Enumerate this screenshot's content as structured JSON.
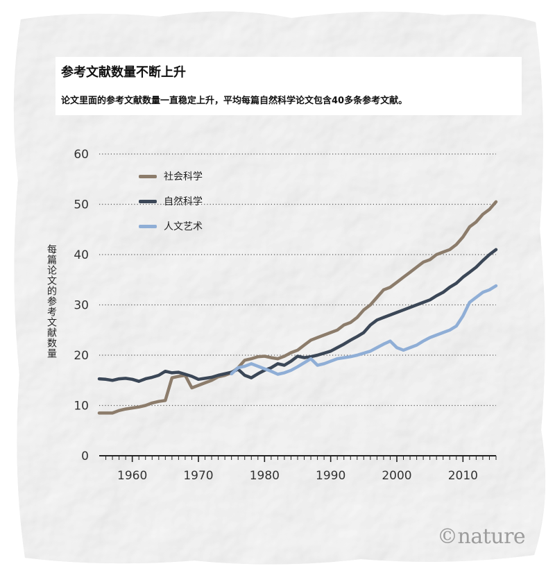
{
  "title": "参考文献数量不断上升",
  "subtitle": "论文里面的参考文献数量一直稳定上升，平均每篇自然科学论文包含40多条参考文献。",
  "watermark": "©nature",
  "colors": {
    "social": "#8c7c6b",
    "natural": "#3b4757",
    "humanities": "#8faed6"
  },
  "chart_data": {
    "type": "line",
    "title": "参考文献数量不断上升",
    "subtitle": "论文里面的参考文献数量一直稳定上升，平均每篇自然科学论文包含40多条参考文献。",
    "xlabel": "",
    "ylabel": "每篇论文的参考文献数量",
    "xlim": [
      1955,
      2015
    ],
    "ylim": [
      0,
      60
    ],
    "yticks": [
      0,
      10,
      20,
      30,
      40,
      50,
      60
    ],
    "xticks": [
      1960,
      1970,
      1980,
      1990,
      2000,
      2010
    ],
    "grid": true,
    "legend_position": "top-left",
    "series": [
      {
        "name": "社会科学",
        "color": "#8c7c6b",
        "x": [
          1955,
          1956,
          1957,
          1958,
          1959,
          1960,
          1961,
          1962,
          1963,
          1964,
          1965,
          1966,
          1967,
          1968,
          1969,
          1970,
          1971,
          1972,
          1973,
          1974,
          1975,
          1976,
          1977,
          1978,
          1979,
          1980,
          1981,
          1982,
          1983,
          1984,
          1985,
          1986,
          1987,
          1988,
          1989,
          1990,
          1991,
          1992,
          1993,
          1994,
          1995,
          1996,
          1997,
          1998,
          1999,
          2000,
          2001,
          2002,
          2003,
          2004,
          2005,
          2006,
          2007,
          2008,
          2009,
          2010,
          2011,
          2012,
          2013,
          2014,
          2015
        ],
        "values": [
          8.5,
          8.5,
          8.5,
          9.0,
          9.3,
          9.5,
          9.7,
          10.0,
          10.5,
          10.8,
          11.0,
          15.5,
          15.8,
          16.0,
          13.5,
          14.0,
          14.5,
          15.0,
          15.7,
          16.0,
          16.5,
          17.5,
          19.0,
          19.3,
          19.7,
          19.8,
          19.5,
          19.3,
          19.8,
          20.5,
          21.0,
          22.0,
          23.0,
          23.5,
          24.0,
          24.5,
          25.0,
          26.0,
          26.5,
          27.5,
          29.0,
          30.0,
          31.5,
          33.0,
          33.5,
          34.5,
          35.5,
          36.5,
          37.5,
          38.5,
          39.0,
          40.0,
          40.5,
          41.0,
          42.0,
          43.5,
          45.5,
          46.5,
          48.0,
          49.0,
          50.5
        ]
      },
      {
        "name": "自然科学",
        "color": "#3b4757",
        "x": [
          1955,
          1956,
          1957,
          1958,
          1959,
          1960,
          1961,
          1962,
          1963,
          1964,
          1965,
          1966,
          1967,
          1968,
          1969,
          1970,
          1971,
          1972,
          1973,
          1974,
          1975,
          1976,
          1977,
          1978,
          1979,
          1980,
          1981,
          1982,
          1983,
          1984,
          1985,
          1986,
          1987,
          1988,
          1989,
          1990,
          1991,
          1992,
          1993,
          1994,
          1995,
          1996,
          1997,
          1998,
          1999,
          2000,
          2001,
          2002,
          2003,
          2004,
          2005,
          2006,
          2007,
          2008,
          2009,
          2010,
          2011,
          2012,
          2013,
          2014,
          2015
        ],
        "values": [
          15.3,
          15.2,
          15.0,
          15.3,
          15.4,
          15.2,
          14.8,
          15.3,
          15.6,
          16.0,
          16.8,
          16.5,
          16.6,
          16.2,
          15.8,
          15.2,
          15.4,
          15.6,
          16.0,
          16.3,
          16.6,
          17.2,
          16.0,
          15.5,
          16.3,
          17.0,
          17.5,
          18.3,
          18.0,
          18.8,
          19.8,
          19.5,
          19.7,
          20.0,
          20.4,
          20.8,
          21.5,
          22.2,
          23.0,
          23.7,
          24.5,
          26.0,
          27.0,
          27.5,
          28.0,
          28.5,
          29.0,
          29.5,
          30.0,
          30.5,
          31.0,
          31.8,
          32.5,
          33.5,
          34.3,
          35.5,
          36.5,
          37.5,
          38.8,
          40.0,
          41.0
        ]
      },
      {
        "name": "人文艺术",
        "color": "#8faed6",
        "x": [
          1975,
          1976,
          1977,
          1978,
          1979,
          1980,
          1981,
          1982,
          1983,
          1984,
          1985,
          1986,
          1987,
          1988,
          1989,
          1990,
          1991,
          1992,
          1993,
          1994,
          1995,
          1996,
          1997,
          1998,
          1999,
          2000,
          2001,
          2002,
          2003,
          2004,
          2005,
          2006,
          2007,
          2008,
          2009,
          2010,
          2011,
          2012,
          2013,
          2014,
          2015
        ],
        "values": [
          16.3,
          17.5,
          17.8,
          18.3,
          17.8,
          17.3,
          16.8,
          16.2,
          16.5,
          17.0,
          17.7,
          18.5,
          19.3,
          18.0,
          18.3,
          18.8,
          19.3,
          19.5,
          19.7,
          20.0,
          20.4,
          20.8,
          21.5,
          22.2,
          22.8,
          21.5,
          21.0,
          21.5,
          22.0,
          22.8,
          23.5,
          24.0,
          24.5,
          25.0,
          25.8,
          27.8,
          30.5,
          31.5,
          32.5,
          33.0,
          33.8
        ]
      }
    ]
  },
  "legend": [
    {
      "label": "社会科学",
      "color": "#8c7c6b"
    },
    {
      "label": "自然科学",
      "color": "#3b4757"
    },
    {
      "label": "人文艺术",
      "color": "#8faed6"
    }
  ]
}
